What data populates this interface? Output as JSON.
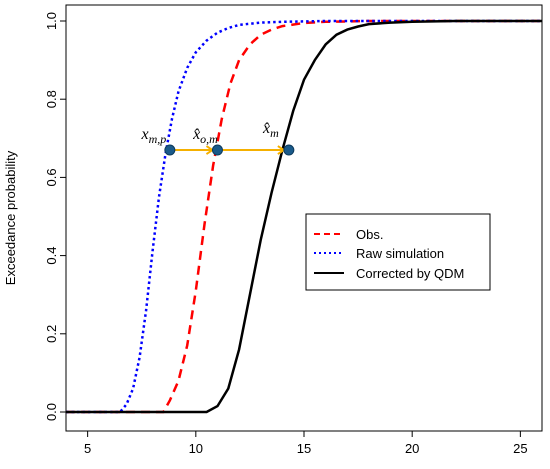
{
  "chart_data": {
    "type": "line",
    "ylabel": "Exceedance probability",
    "xlim": [
      4,
      26
    ],
    "ylim": [
      0,
      1.04
    ],
    "xticks": [
      5,
      10,
      15,
      20,
      25
    ],
    "yticks": [
      0.0,
      0.2,
      0.4,
      0.6,
      0.8,
      1.0
    ],
    "xtick_labels": [
      "5",
      "10",
      "15",
      "20",
      "25"
    ],
    "ytick_labels": [
      "0.0",
      "0.2",
      "0.4",
      "0.6",
      "0.8",
      "1.0"
    ],
    "grid": false,
    "legend_position": "center-right",
    "series": [
      {
        "name": "Obs.",
        "color": "#ff0000",
        "style": "dashed",
        "x": [
          4,
          8.5,
          8.8,
          9.2,
          9.6,
          10.0,
          10.4,
          10.8,
          11.2,
          11.6,
          12.0,
          12.5,
          13.0,
          13.5,
          14.0,
          15.0,
          16.0,
          17.0,
          18.0,
          20.0,
          26.0
        ],
        "y": [
          0,
          0,
          0.03,
          0.08,
          0.17,
          0.31,
          0.48,
          0.63,
          0.75,
          0.84,
          0.9,
          0.94,
          0.965,
          0.978,
          0.987,
          0.995,
          0.998,
          0.999,
          1.0,
          1.0,
          1.0
        ]
      },
      {
        "name": "Raw simulation",
        "color": "#0000ff",
        "style": "dotted",
        "x": [
          4,
          6.5,
          6.8,
          7.1,
          7.4,
          7.7,
          8.0,
          8.3,
          8.6,
          8.9,
          9.2,
          9.6,
          10.0,
          10.5,
          11.0,
          11.5,
          12.0,
          13.0,
          14.0,
          16.0,
          20.0,
          26.0
        ],
        "y": [
          0,
          0,
          0.02,
          0.06,
          0.14,
          0.26,
          0.41,
          0.55,
          0.66,
          0.75,
          0.82,
          0.88,
          0.92,
          0.95,
          0.97,
          0.982,
          0.99,
          0.996,
          0.998,
          1.0,
          1.0,
          1.0
        ]
      },
      {
        "name": "Corrected by QDM",
        "color": "#000000",
        "style": "solid",
        "x": [
          4,
          10.5,
          11.0,
          11.5,
          12.0,
          12.5,
          13.0,
          13.5,
          14.0,
          14.5,
          15.0,
          15.5,
          16.0,
          16.5,
          17.0,
          17.5,
          18.0,
          19.0,
          20.0,
          21.0,
          22.0,
          24.0,
          26.0
        ],
        "y": [
          0,
          0,
          0.015,
          0.06,
          0.16,
          0.3,
          0.44,
          0.56,
          0.67,
          0.77,
          0.85,
          0.9,
          0.94,
          0.965,
          0.978,
          0.986,
          0.992,
          0.996,
          0.998,
          0.999,
          1.0,
          1.0,
          1.0
        ]
      }
    ],
    "annotation": {
      "color": "#f5b000",
      "point_color": "#1a5a8a",
      "y": 0.67,
      "points": [
        {
          "x": 8.8,
          "label": "x_{m,p}"
        },
        {
          "x": 11.0,
          "label": "x̂_{o,m}"
        },
        {
          "x": 14.3,
          "label": "x̂_{m}"
        }
      ]
    }
  }
}
